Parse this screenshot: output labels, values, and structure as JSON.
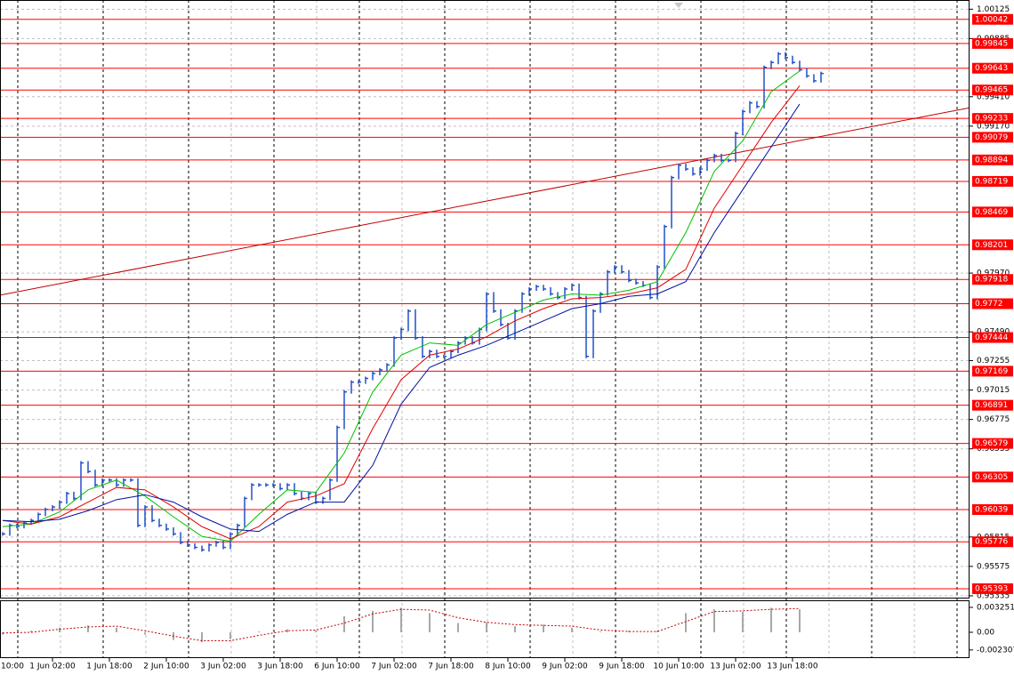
{
  "chart_data": {
    "type": "price",
    "x_labels": [
      "10:00",
      "1 Jun 02:00",
      "1 Jun 18:00",
      "2 Jun 10:00",
      "3 Jun 02:00",
      "3 Jun 18:00",
      "6 Jun 10:00",
      "7 Jun 02:00",
      "7 Jun 18:00",
      "8 Jun 10:00",
      "9 Jun 02:00",
      "9 Jun 18:00",
      "10 Jun 10:00",
      "13 Jun 02:00",
      "13 Jun 18:00"
    ],
    "ylim": [
      0.9532,
      1.002
    ],
    "yticks": [
      1.00125,
      0.99885,
      {
        "value": 0.9941,
        "label": "0.99410"
      },
      {
        "value": 0.9917,
        "label": "0.99170"
      },
      {
        "value": 0.9797,
        "label": "0.97970"
      },
      {
        "value": 0.9749,
        "label": "0.97490"
      },
      0.97255,
      0.97015,
      0.96775,
      0.96535,
      0.95815,
      0.95575,
      0.95335
    ],
    "levels": {
      "color": "#ff0000",
      "values": [
        1.00042,
        0.99845,
        0.99643,
        0.99465,
        0.99233,
        0.99079,
        0.98894,
        0.98719,
        0.98469,
        0.98201,
        0.97918,
        0.9772,
        0.97444,
        0.97169,
        0.96891,
        0.96579,
        0.96305,
        0.96039,
        0.95776,
        0.95393
      ]
    },
    "trendline": {
      "color": "#c00000",
      "values": [
        0.9779,
        0.9932
      ]
    },
    "series": [
      {
        "color": "#2050c8",
        "values": [
          0.9584,
          0.9591,
          0.959,
          0.9593,
          0.9595,
          0.96,
          0.9604,
          0.9606,
          0.961,
          0.9617,
          0.9613,
          0.9642,
          0.9635,
          0.9624,
          0.9628,
          0.9628,
          0.9624,
          0.9628,
          0.9628,
          0.9591,
          0.9606,
          0.9595,
          0.9591,
          0.9588,
          0.9584,
          0.9577,
          0.9575,
          0.9573,
          0.9571,
          0.9575,
          0.9577,
          0.9573,
          0.9584,
          0.9591,
          0.9613,
          0.9624,
          0.9624,
          0.9624,
          0.9624,
          0.9621,
          0.9624,
          0.9617,
          0.9613,
          0.9617,
          0.961,
          0.9613,
          0.9628,
          0.9671,
          0.97,
          0.9708,
          0.9708,
          0.9711,
          0.9715,
          0.9718,
          0.9722,
          0.9744,
          0.9751,
          0.9766,
          0.9744,
          0.9729,
          0.9733,
          0.9729,
          0.9729,
          0.9733,
          0.974,
          0.9744,
          0.974,
          0.9751,
          0.978,
          0.9766,
          0.9755,
          0.9744,
          0.9766,
          0.978,
          0.9784,
          0.9786,
          0.9784,
          0.978,
          0.9777,
          0.9784,
          0.9787,
          0.9777,
          0.9729,
          0.9766,
          0.978,
          0.9798,
          0.9802,
          0.9798,
          0.9791,
          0.9789,
          0.9787,
          0.9777,
          0.9802,
          0.9835,
          0.9875,
          0.9885,
          0.9882,
          0.9878,
          0.9882,
          0.9889,
          0.9893,
          0.9889,
          0.9889,
          0.9911,
          0.9929,
          0.9936,
          0.9933,
          0.9965,
          0.9969,
          0.9976,
          0.9973,
          0.9969,
          0.9963,
          0.9958,
          0.9954,
          0.996
        ]
      },
      {
        "color": "#00c000",
        "values": [
          0.959,
          0.9592,
          0.9602,
          0.962,
          0.9628,
          0.9615,
          0.9598,
          0.9582,
          0.9578,
          0.96,
          0.962,
          0.9618,
          0.965,
          0.97,
          0.973,
          0.974,
          0.9738,
          0.9755,
          0.9765,
          0.9775,
          0.978,
          0.9779,
          0.9783,
          0.979,
          0.983,
          0.988,
          0.9905,
          0.9945,
          0.9962
        ]
      },
      {
        "color": "#e00000",
        "values": [
          0.9595,
          0.9592,
          0.9598,
          0.961,
          0.9622,
          0.962,
          0.9606,
          0.959,
          0.958,
          0.959,
          0.961,
          0.9615,
          0.9625,
          0.967,
          0.971,
          0.973,
          0.9735,
          0.9745,
          0.9758,
          0.9768,
          0.9776,
          0.9777,
          0.978,
          0.9785,
          0.98,
          0.985,
          0.9885,
          0.992,
          0.995
        ]
      },
      {
        "color": "#0010a0",
        "values": [
          0.9595,
          0.9594,
          0.9596,
          0.9603,
          0.9612,
          0.9616,
          0.961,
          0.9598,
          0.9588,
          0.9586,
          0.96,
          0.961,
          0.961,
          0.964,
          0.969,
          0.972,
          0.973,
          0.9738,
          0.9748,
          0.9758,
          0.9768,
          0.9772,
          0.9778,
          0.978,
          0.979,
          0.983,
          0.9865,
          0.99,
          0.9935
        ]
      }
    ],
    "oscillator": {
      "ylim": [
        -0.00337,
        0.00406
      ],
      "yticks": [
        0.003251,
        {
          "value": 0,
          "label": "0.00"
        },
        -0.002307
      ],
      "histogram": {
        "color": "#a8a8a8",
        "values": [
          -0.0003,
          0.0002,
          0.0006,
          0.0009,
          0.0006,
          -0.0003,
          -0.001,
          -0.0013,
          -0.0009,
          0.0001,
          0.0004,
          0.0002,
          0.0021,
          0.0028,
          0.0032,
          0.0025,
          0.0012,
          0.0013,
          0.0008,
          0.001,
          0.0006,
          0.0001,
          0.0002,
          0.0002,
          0.0025,
          0.003,
          0.0027,
          0.0032,
          0.003
        ]
      },
      "signal": {
        "color": "#c00000",
        "values": [
          -0.0001,
          0,
          0.0004,
          0.0007,
          0.0008,
          0.0002,
          -0.0005,
          -0.0011,
          -0.0011,
          -0.0004,
          0.0002,
          0.0003,
          0.0012,
          0.0024,
          0.003,
          0.0029,
          0.0019,
          0.0013,
          0.001,
          0.0009,
          0.0008,
          0.0003,
          0.0001,
          0.0001,
          0.0014,
          0.0027,
          0.0028,
          0.003,
          0.0031
        ]
      }
    }
  }
}
